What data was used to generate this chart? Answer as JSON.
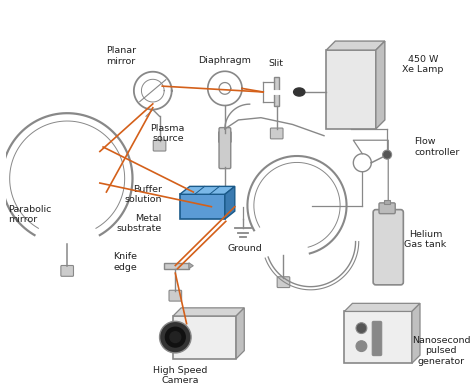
{
  "background_color": "#ffffff",
  "line_color": "#888888",
  "beam_color": "#d4601a",
  "labels": {
    "parabolic_mirror": [
      "Parabolic",
      "mirror"
    ],
    "planar_mirror": [
      "Planar",
      "mirror"
    ],
    "diaphragm": [
      "Diaphragm"
    ],
    "slit": [
      "Slit"
    ],
    "xe_lamp": [
      "450 W",
      "Xe Lamp"
    ],
    "plasma_source": [
      "Plasma",
      "source"
    ],
    "buffer_solution": [
      "Buffer",
      "solution"
    ],
    "metal_substrate": [
      "Metal",
      "substrate"
    ],
    "ground": [
      "Ground"
    ],
    "flow_controller": [
      "Flow",
      "controller"
    ],
    "helium_tank": [
      "Helium",
      "Gas tank"
    ],
    "knife_edge": [
      "Knife",
      "edge"
    ],
    "high_speed_camera": [
      "High Speed",
      "Camera"
    ],
    "nanosecond": [
      "Nanosecond",
      "pulsed",
      "generator"
    ]
  },
  "xlim": [
    0,
    10
  ],
  "ylim": [
    0,
    8.5
  ]
}
